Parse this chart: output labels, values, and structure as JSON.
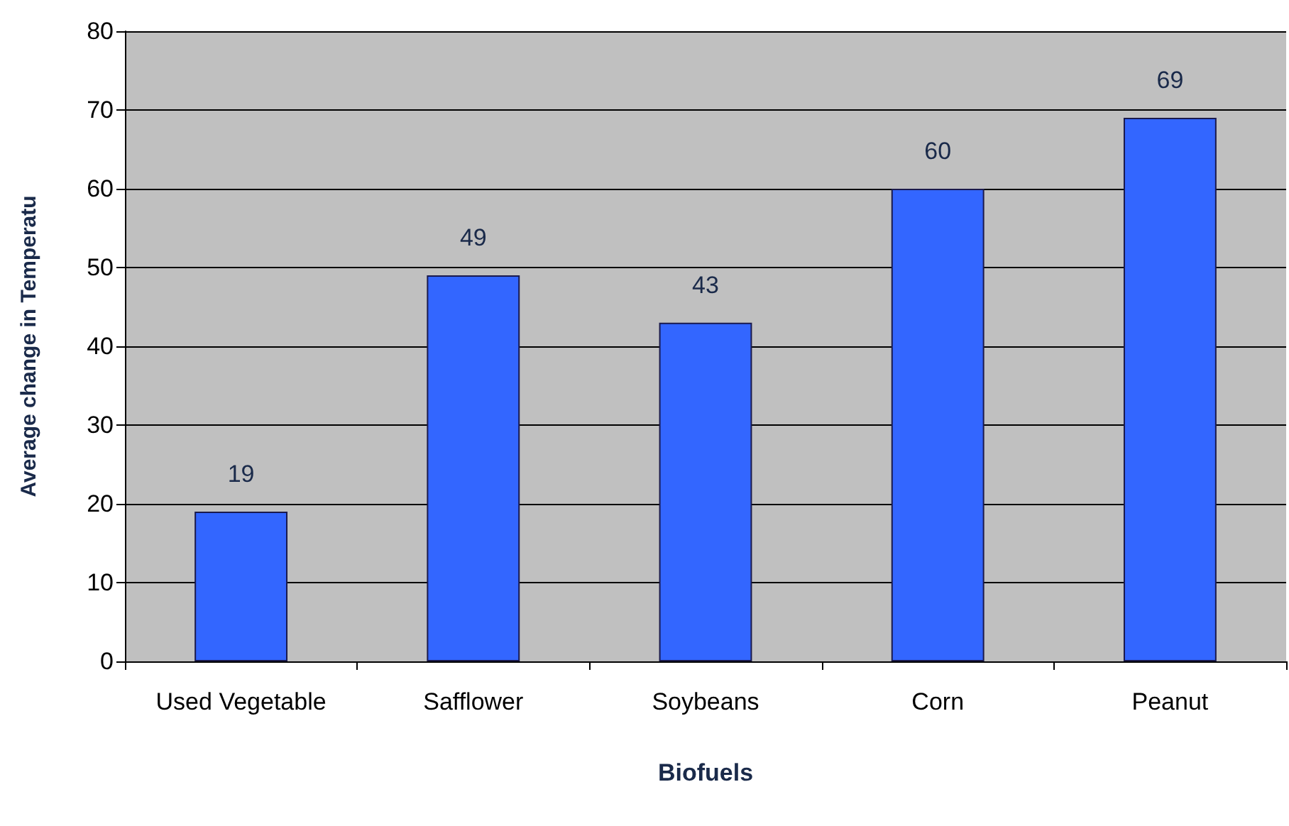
{
  "chart_data": {
    "type": "bar",
    "xlabel": "Biofuels",
    "ylabel": "Average change in Temperatu",
    "categories": [
      "Used Vegetable",
      "Safflower",
      "Soybeans",
      "Corn",
      "Peanut"
    ],
    "values": [
      19,
      49,
      43,
      60,
      69
    ],
    "color": "#3366ff",
    "ylim": [
      0,
      80
    ],
    "yticks": [
      0,
      10,
      20,
      30,
      40,
      50,
      60,
      70,
      80
    ],
    "grid": "y",
    "data_labels": true
  }
}
